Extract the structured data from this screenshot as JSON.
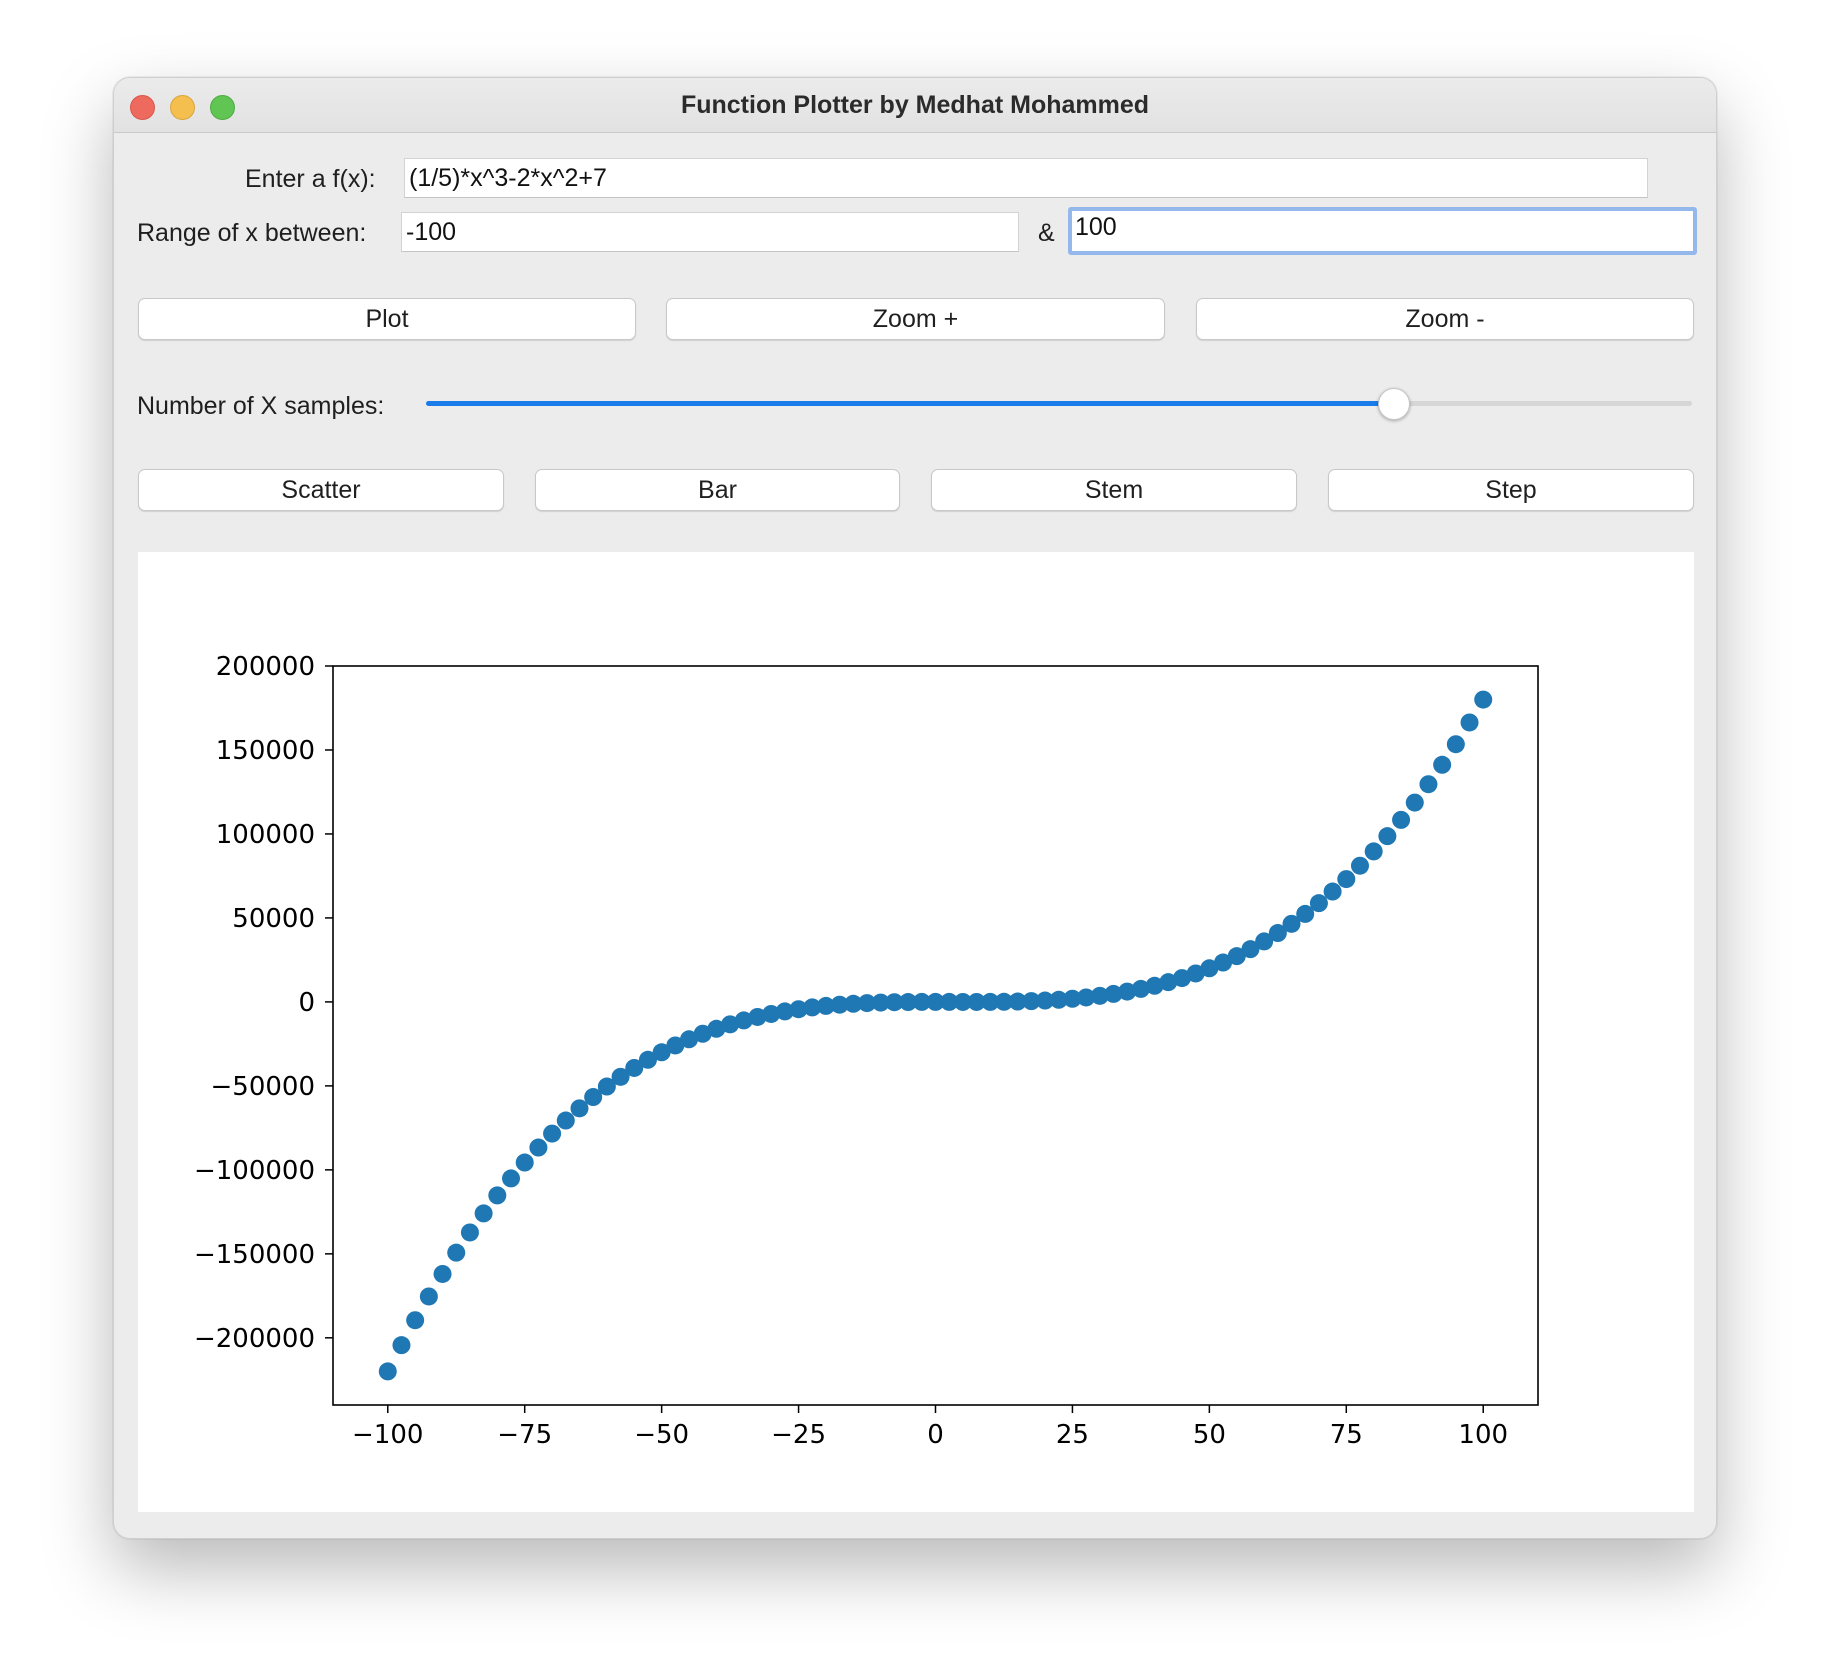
{
  "window": {
    "title": "Function Plotter by Medhat Mohammed"
  },
  "function_row": {
    "label": "Enter a f(x):",
    "value": "(1/5)*x^3-2*x^2+7"
  },
  "range_row": {
    "label": "Range of x between:",
    "min_value": "-100",
    "separator": "&",
    "max_value": "100"
  },
  "action_buttons": {
    "plot": "Plot",
    "zoom_in": "Zoom +",
    "zoom_out": "Zoom -"
  },
  "samples": {
    "label": "Number of X samples:",
    "slider_fraction": 0.77,
    "accent_color": "#1a7bea"
  },
  "type_buttons": {
    "scatter": "Scatter",
    "bar": "Bar",
    "stem": "Stem",
    "step": "Step"
  },
  "chart_data": {
    "type": "scatter",
    "function": "(1/5)*x^3-2*x^2+7",
    "x_start": -100,
    "x_end": 100,
    "num_points": 81,
    "color": "#1f77b4",
    "xlim": [
      -110,
      110
    ],
    "ylim": [
      -240000,
      200000
    ],
    "xticks": [
      -100,
      -75,
      -50,
      -25,
      0,
      25,
      50,
      75,
      100
    ],
    "yticks": [
      200000,
      150000,
      100000,
      50000,
      0,
      -50000,
      -100000,
      -150000,
      -200000
    ],
    "xtick_labels": [
      "−100",
      "−75",
      "−50",
      "−25",
      "0",
      "25",
      "50",
      "75",
      "100"
    ],
    "ytick_labels": [
      "200000",
      "150000",
      "100000",
      "50000",
      "0",
      "−50000",
      "−100000",
      "−150000",
      "−200000"
    ],
    "grid": false
  }
}
